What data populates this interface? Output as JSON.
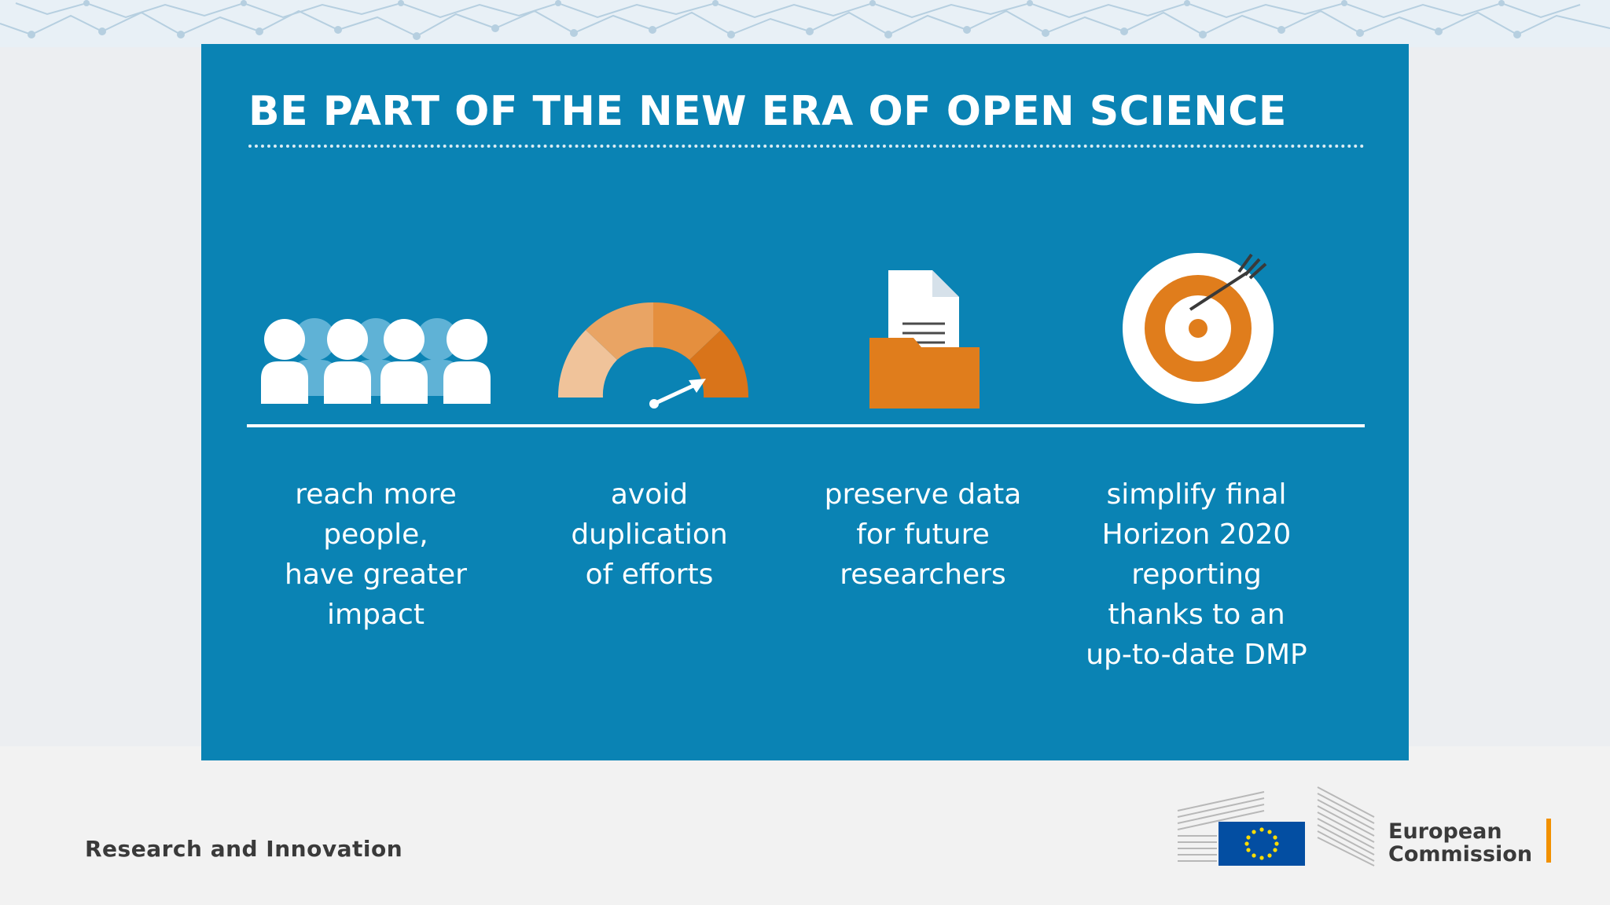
{
  "slide": {
    "title": "BE PART OF THE NEW ERA OF OPEN SCIENCE",
    "benefits": [
      {
        "icon": "people-group-icon",
        "label": "reach more\npeople,\nhave greater\nimpact"
      },
      {
        "icon": "speedometer-gauge-icon",
        "label": "avoid\nduplication\nof efforts"
      },
      {
        "icon": "document-folder-icon",
        "label": "preserve data\nfor future\nresearchers"
      },
      {
        "icon": "target-arrow-icon",
        "label": "simplify final\nHorizon 2020\nreporting\nthanks to an\nup-to-date DMP"
      }
    ]
  },
  "footer": {
    "unit": "Research and Innovation",
    "logo_icon": "eu-flag-building-icon",
    "organization": "European\nCommission"
  },
  "colors": {
    "panel": "#0a83b4",
    "accent_orange": "#e07d1c",
    "light_orange": "#efc296",
    "logo_blue": "#034ea2",
    "logo_accent": "#f29100"
  }
}
